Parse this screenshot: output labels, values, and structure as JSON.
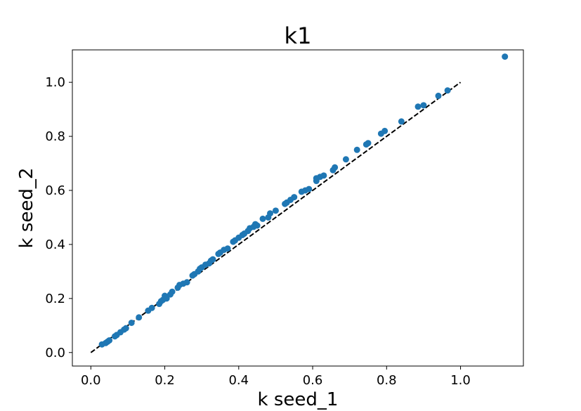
{
  "chart_data": {
    "type": "scatter",
    "title": "k1",
    "xlabel": "k seed_1",
    "ylabel": "k seed_2",
    "xlim": [
      -0.05,
      1.17
    ],
    "ylim": [
      -0.05,
      1.12
    ],
    "xticks": [
      0.0,
      0.2,
      0.4,
      0.6,
      0.8,
      1.0
    ],
    "yticks": [
      0.0,
      0.2,
      0.4,
      0.6,
      0.8,
      1.0
    ],
    "xtick_labels": [
      "0.0",
      "0.2",
      "0.4",
      "0.6",
      "0.8",
      "1.0"
    ],
    "ytick_labels": [
      "0.0",
      "0.2",
      "0.4",
      "0.6",
      "0.8",
      "1.0"
    ],
    "grid": false,
    "marker_color": "#1f77b4",
    "reference_line": {
      "x": [
        0.0,
        1.0
      ],
      "y": [
        0.0,
        1.0
      ],
      "style": "dashed",
      "color": "#000000"
    },
    "points": [
      [
        0.03,
        0.03
      ],
      [
        0.04,
        0.035
      ],
      [
        0.045,
        0.04
      ],
      [
        0.05,
        0.045
      ],
      [
        0.065,
        0.06
      ],
      [
        0.07,
        0.065
      ],
      [
        0.08,
        0.075
      ],
      [
        0.09,
        0.085
      ],
      [
        0.095,
        0.09
      ],
      [
        0.11,
        0.11
      ],
      [
        0.13,
        0.13
      ],
      [
        0.155,
        0.155
      ],
      [
        0.165,
        0.165
      ],
      [
        0.185,
        0.18
      ],
      [
        0.19,
        0.19
      ],
      [
        0.195,
        0.195
      ],
      [
        0.2,
        0.21
      ],
      [
        0.205,
        0.2
      ],
      [
        0.215,
        0.215
      ],
      [
        0.22,
        0.225
      ],
      [
        0.235,
        0.24
      ],
      [
        0.24,
        0.25
      ],
      [
        0.25,
        0.255
      ],
      [
        0.26,
        0.26
      ],
      [
        0.275,
        0.285
      ],
      [
        0.28,
        0.29
      ],
      [
        0.29,
        0.3
      ],
      [
        0.295,
        0.31
      ],
      [
        0.3,
        0.315
      ],
      [
        0.31,
        0.325
      ],
      [
        0.32,
        0.33
      ],
      [
        0.325,
        0.34
      ],
      [
        0.33,
        0.345
      ],
      [
        0.345,
        0.365
      ],
      [
        0.35,
        0.37
      ],
      [
        0.36,
        0.38
      ],
      [
        0.37,
        0.385
      ],
      [
        0.385,
        0.41
      ],
      [
        0.39,
        0.415
      ],
      [
        0.4,
        0.425
      ],
      [
        0.41,
        0.435
      ],
      [
        0.415,
        0.44
      ],
      [
        0.425,
        0.45
      ],
      [
        0.43,
        0.46
      ],
      [
        0.44,
        0.465
      ],
      [
        0.445,
        0.475
      ],
      [
        0.45,
        0.47
      ],
      [
        0.465,
        0.495
      ],
      [
        0.48,
        0.5
      ],
      [
        0.485,
        0.515
      ],
      [
        0.5,
        0.525
      ],
      [
        0.525,
        0.55
      ],
      [
        0.53,
        0.555
      ],
      [
        0.54,
        0.565
      ],
      [
        0.55,
        0.575
      ],
      [
        0.57,
        0.595
      ],
      [
        0.58,
        0.6
      ],
      [
        0.59,
        0.605
      ],
      [
        0.61,
        0.635
      ],
      [
        0.61,
        0.645
      ],
      [
        0.62,
        0.65
      ],
      [
        0.63,
        0.655
      ],
      [
        0.655,
        0.675
      ],
      [
        0.66,
        0.685
      ],
      [
        0.69,
        0.715
      ],
      [
        0.72,
        0.75
      ],
      [
        0.745,
        0.77
      ],
      [
        0.75,
        0.775
      ],
      [
        0.785,
        0.81
      ],
      [
        0.795,
        0.82
      ],
      [
        0.84,
        0.855
      ],
      [
        0.885,
        0.91
      ],
      [
        0.9,
        0.915
      ],
      [
        0.94,
        0.95
      ],
      [
        0.965,
        0.97
      ],
      [
        1.12,
        1.095
      ]
    ]
  }
}
